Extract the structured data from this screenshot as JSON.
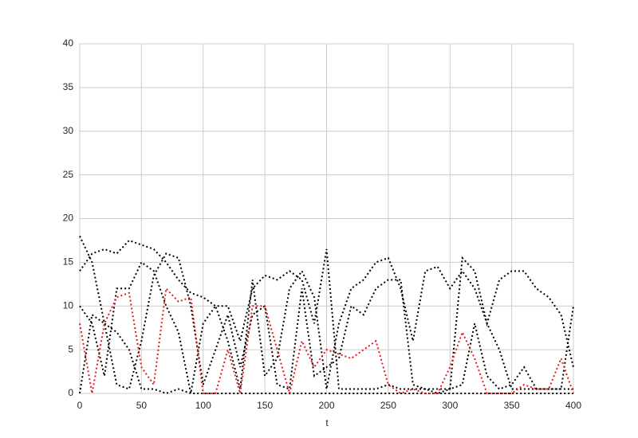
{
  "chart_data": {
    "type": "line",
    "xlabel": "t",
    "x": [
      0,
      10,
      20,
      30,
      40,
      50,
      60,
      70,
      80,
      90,
      100,
      110,
      120,
      130,
      140,
      150,
      160,
      170,
      180,
      190,
      200,
      210,
      220,
      230,
      240,
      250,
      260,
      270,
      280,
      290,
      300,
      310,
      320,
      330,
      340,
      350,
      360,
      370,
      380,
      390,
      400
    ],
    "series": [
      {
        "color": "#000000",
        "values": [
          18,
          15,
          8,
          7,
          5,
          0.5,
          0.5,
          0,
          0.5,
          0,
          0,
          0,
          0,
          0,
          0,
          0,
          0,
          0,
          0,
          0,
          0,
          0,
          0,
          0,
          0,
          0,
          0,
          0,
          0,
          0,
          0,
          0,
          0,
          0,
          0,
          0,
          0,
          0,
          0,
          0,
          0
        ]
      },
      {
        "color": "#000000",
        "values": [
          14,
          16,
          16.5,
          16,
          17.5,
          17,
          16.5,
          15,
          13,
          11.5,
          11,
          10,
          10,
          6,
          12,
          13.5,
          13,
          14,
          13,
          8,
          16.5,
          0.5,
          0.5,
          0.5,
          0.5,
          1,
          0.5,
          0.5,
          0.5,
          0,
          0.5,
          15.5,
          14,
          8,
          13,
          14,
          14,
          12,
          11,
          9,
          3
        ]
      },
      {
        "color": "#000000",
        "values": [
          10,
          8,
          2,
          12,
          12,
          15,
          14,
          10,
          7,
          0,
          8,
          10,
          6,
          0.5,
          13,
          2,
          4,
          12,
          14,
          11,
          0.5,
          8,
          12,
          13,
          15,
          15.5,
          12,
          6,
          14,
          14.5,
          12,
          14,
          12,
          8,
          5,
          0.5,
          0.5,
          0.5,
          0.5,
          0.5,
          0.5
        ]
      },
      {
        "color": "#000000",
        "values": [
          0,
          9,
          8,
          1,
          0.5,
          6,
          13.5,
          16,
          15.5,
          10,
          1,
          5,
          9,
          3,
          9,
          10,
          1,
          0.5,
          12,
          2,
          3,
          4,
          10,
          9,
          12,
          13,
          13,
          1,
          0.5,
          0.5,
          0.5,
          1,
          8,
          2,
          0.5,
          1,
          3,
          0.5,
          0.5,
          0.5,
          10
        ]
      },
      {
        "color": "#e41a1c",
        "values": [
          8,
          0,
          8,
          11,
          11.5,
          3,
          1,
          12,
          10.5,
          11,
          0,
          0,
          5,
          0,
          10,
          10,
          5,
          0,
          6,
          3,
          5,
          4.5,
          4,
          5,
          6,
          1,
          0,
          0.5,
          0,
          0,
          3,
          7,
          4,
          0,
          0,
          0,
          1,
          0.5,
          0.5,
          4,
          0
        ]
      }
    ],
    "xlim": [
      0,
      400
    ],
    "xticks": [
      0,
      50,
      100,
      150,
      200,
      250,
      300,
      350,
      400
    ],
    "ylim": [
      0,
      40
    ],
    "yticks": [
      0,
      5,
      10,
      15,
      20,
      25,
      30,
      35,
      40
    ],
    "grid": true
  }
}
